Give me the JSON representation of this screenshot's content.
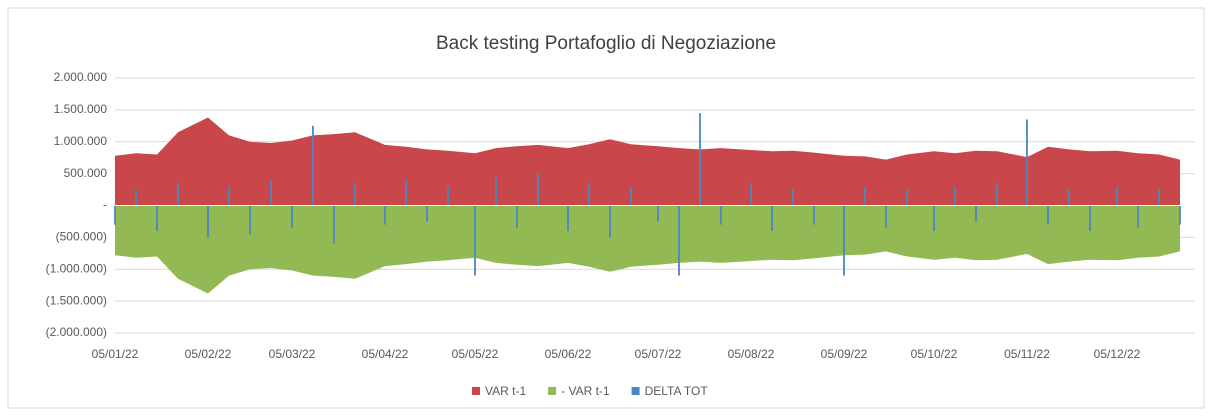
{
  "chart_data": {
    "type": "area",
    "title": "Back testing Portafoglio di Negoziazione",
    "x": [
      "05/01/22",
      "12/01/22",
      "19/01/22",
      "26/01/22",
      "05/02/22",
      "12/02/22",
      "19/02/22",
      "26/02/22",
      "05/03/22",
      "12/03/22",
      "19/03/22",
      "26/03/22",
      "05/04/22",
      "12/04/22",
      "19/04/22",
      "26/04/22",
      "05/05/22",
      "12/05/22",
      "19/05/22",
      "26/05/22",
      "05/06/22",
      "12/06/22",
      "19/06/22",
      "26/06/22",
      "05/07/22",
      "12/07/22",
      "19/07/22",
      "26/07/22",
      "05/08/22",
      "12/08/22",
      "19/08/22",
      "26/08/22",
      "05/09/22",
      "12/09/22",
      "19/09/22",
      "26/09/22",
      "05/10/22",
      "12/10/22",
      "19/10/22",
      "26/10/22",
      "05/11/22",
      "12/11/22",
      "19/11/22",
      "26/11/22",
      "05/12/22",
      "12/12/22",
      "19/12/22",
      "26/12/22"
    ],
    "xlim": [
      "05/01/22",
      "31/12/22"
    ],
    "xticks": [
      "05/01/22",
      "05/02/22",
      "05/03/22",
      "05/04/22",
      "05/05/22",
      "05/06/22",
      "05/07/22",
      "05/08/22",
      "05/09/22",
      "05/10/22",
      "05/11/22",
      "05/12/22"
    ],
    "ylim": [
      -2000000,
      2000000
    ],
    "yticks": [
      {
        "value": 2000000,
        "label": "2.000.000"
      },
      {
        "value": 1500000,
        "label": "1.500.000"
      },
      {
        "value": 1000000,
        "label": "1.000.000"
      },
      {
        "value": 500000,
        "label": "500.000"
      },
      {
        "value": 0,
        "label": "-"
      },
      {
        "value": -500000,
        "label": "(500.000)"
      },
      {
        "value": -1000000,
        "label": "(1.000.000)"
      },
      {
        "value": -1500000,
        "label": "(1.500.000)"
      },
      {
        "value": -2000000,
        "label": "(2.000.000)"
      }
    ],
    "grid": true,
    "legend": "bottom",
    "series": [
      {
        "name": "VAR t-1",
        "color": "#c9474a",
        "kind": "area",
        "values": [
          780000,
          820000,
          800000,
          1150000,
          1380000,
          1100000,
          1000000,
          980000,
          1020000,
          1100000,
          1120000,
          1150000,
          950000,
          920000,
          880000,
          860000,
          820000,
          900000,
          930000,
          950000,
          900000,
          960000,
          1040000,
          960000,
          930000,
          900000,
          880000,
          900000,
          870000,
          850000,
          860000,
          830000,
          780000,
          770000,
          720000,
          800000,
          850000,
          820000,
          860000,
          850000,
          760000,
          920000,
          880000,
          850000,
          860000,
          820000,
          800000,
          720000
        ]
      },
      {
        "name": "- VAR t-1",
        "color": "#93b954",
        "kind": "area",
        "values": [
          -780000,
          -820000,
          -800000,
          -1150000,
          -1380000,
          -1100000,
          -1000000,
          -980000,
          -1020000,
          -1100000,
          -1120000,
          -1150000,
          -950000,
          -920000,
          -880000,
          -860000,
          -820000,
          -900000,
          -930000,
          -950000,
          -900000,
          -960000,
          -1040000,
          -960000,
          -930000,
          -900000,
          -880000,
          -900000,
          -870000,
          -850000,
          -860000,
          -830000,
          -780000,
          -770000,
          -720000,
          -800000,
          -850000,
          -820000,
          -860000,
          -850000,
          -760000,
          -920000,
          -880000,
          -850000,
          -860000,
          -820000,
          -800000,
          -720000
        ]
      },
      {
        "name": "DELTA TOT",
        "color": "#4a86c5",
        "kind": "bar",
        "values": [
          -300000,
          250000,
          -400000,
          350000,
          -500000,
          300000,
          -450000,
          400000,
          -350000,
          1250000,
          -600000,
          350000,
          -300000,
          400000,
          -250000,
          300000,
          -1100000,
          450000,
          -350000,
          500000,
          -400000,
          350000,
          -500000,
          300000,
          -250000,
          -1100000,
          1450000,
          -300000,
          350000,
          -400000,
          250000,
          -300000,
          -1100000,
          300000,
          -350000,
          250000,
          -400000,
          300000,
          -250000,
          350000,
          1350000,
          -300000,
          250000,
          -400000,
          300000,
          -350000,
          250000,
          -300000
        ]
      }
    ]
  }
}
